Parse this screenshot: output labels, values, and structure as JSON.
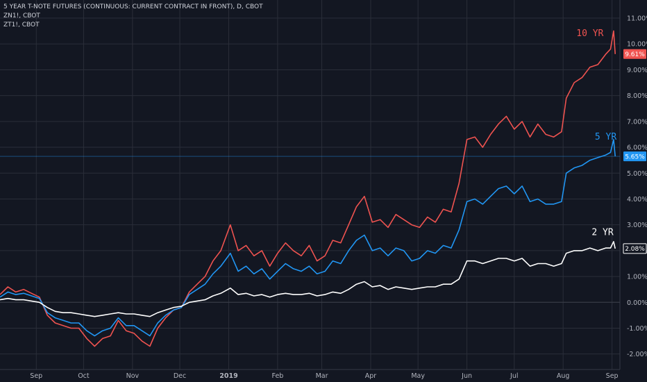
{
  "legend": {
    "title": "5 YEAR T-NOTE FUTURES (CONTINUOUS: CURRENT CONTRACT IN FRONT), D, CBOT",
    "line2": "ZN1!, CBOT",
    "line3": "ZT1!, CBOT"
  },
  "colors": {
    "background": "#131722",
    "grid": "#2a2e39",
    "ten_yr": "#ef5350",
    "five_yr": "#2196f3",
    "two_yr": "#ffffff"
  },
  "chart_data": {
    "type": "line",
    "ylim": [
      -2.6,
      11.7
    ],
    "yticks": [
      "11.00%",
      "10.00%",
      "9.00%",
      "8.00%",
      "7.00%",
      "6.00%",
      "5.00%",
      "4.00%",
      "3.00%",
      "2.00%",
      "1.00%",
      "0.00%",
      "-1.00%",
      "-2.00%"
    ],
    "ytick_values": [
      11,
      10,
      9,
      8,
      7,
      6,
      5,
      4,
      3,
      2,
      1,
      0,
      -1,
      -2
    ],
    "xticks": [
      "Sep",
      "Oct",
      "Nov",
      "Dec",
      "2019",
      "Feb",
      "Mar",
      "Apr",
      "May",
      "Jun",
      "Jul",
      "Aug",
      "Sep"
    ],
    "xtick_dates": [
      "2018-09-01",
      "2018-10-01",
      "2018-11-01",
      "2018-12-01",
      "2019-01-01",
      "2019-02-01",
      "2019-03-01",
      "2019-04-01",
      "2019-05-01",
      "2019-06-01",
      "2019-07-01",
      "2019-08-01",
      "2019-09-01"
    ],
    "xlim": [
      "2018-08-09",
      "2019-09-06"
    ],
    "series": [
      {
        "name": "10 YR",
        "last_value": "9.61%",
        "points": [
          [
            "2018-08-09",
            0.3
          ],
          [
            "2018-08-14",
            0.6
          ],
          [
            "2018-08-19",
            0.4
          ],
          [
            "2018-08-24",
            0.5
          ],
          [
            "2018-08-29",
            0.35
          ],
          [
            "2018-09-03",
            0.2
          ],
          [
            "2018-09-08",
            -0.5
          ],
          [
            "2018-09-13",
            -0.8
          ],
          [
            "2018-09-18",
            -0.9
          ],
          [
            "2018-09-23",
            -1.0
          ],
          [
            "2018-09-28",
            -1.0
          ],
          [
            "2018-10-03",
            -1.4
          ],
          [
            "2018-10-08",
            -1.7
          ],
          [
            "2018-10-13",
            -1.4
          ],
          [
            "2018-10-18",
            -1.3
          ],
          [
            "2018-10-23",
            -0.7
          ],
          [
            "2018-10-28",
            -1.1
          ],
          [
            "2018-11-02",
            -1.2
          ],
          [
            "2018-11-07",
            -1.5
          ],
          [
            "2018-11-12",
            -1.7
          ],
          [
            "2018-11-17",
            -1.0
          ],
          [
            "2018-11-22",
            -0.6
          ],
          [
            "2018-11-27",
            -0.3
          ],
          [
            "2018-12-02",
            -0.2
          ],
          [
            "2018-12-07",
            0.4
          ],
          [
            "2018-12-12",
            0.7
          ],
          [
            "2018-12-17",
            1.0
          ],
          [
            "2018-12-22",
            1.6
          ],
          [
            "2018-12-27",
            2.0
          ],
          [
            "2019-01-02",
            3.0
          ],
          [
            "2019-01-07",
            2.0
          ],
          [
            "2019-01-12",
            2.2
          ],
          [
            "2019-01-17",
            1.8
          ],
          [
            "2019-01-22",
            2.0
          ],
          [
            "2019-01-27",
            1.4
          ],
          [
            "2019-02-01",
            1.9
          ],
          [
            "2019-02-06",
            2.3
          ],
          [
            "2019-02-11",
            2.0
          ],
          [
            "2019-02-16",
            1.8
          ],
          [
            "2019-02-21",
            2.2
          ],
          [
            "2019-02-26",
            1.6
          ],
          [
            "2019-03-03",
            1.8
          ],
          [
            "2019-03-08",
            2.4
          ],
          [
            "2019-03-13",
            2.3
          ],
          [
            "2019-03-18",
            3.0
          ],
          [
            "2019-03-23",
            3.7
          ],
          [
            "2019-03-28",
            4.1
          ],
          [
            "2019-04-02",
            3.1
          ],
          [
            "2019-04-07",
            3.2
          ],
          [
            "2019-04-12",
            2.9
          ],
          [
            "2019-04-17",
            3.4
          ],
          [
            "2019-04-22",
            3.2
          ],
          [
            "2019-04-27",
            3.0
          ],
          [
            "2019-05-02",
            2.9
          ],
          [
            "2019-05-07",
            3.3
          ],
          [
            "2019-05-12",
            3.1
          ],
          [
            "2019-05-17",
            3.6
          ],
          [
            "2019-05-22",
            3.5
          ],
          [
            "2019-05-27",
            4.6
          ],
          [
            "2019-06-01",
            6.3
          ],
          [
            "2019-06-06",
            6.4
          ],
          [
            "2019-06-11",
            6.0
          ],
          [
            "2019-06-16",
            6.5
          ],
          [
            "2019-06-21",
            6.9
          ],
          [
            "2019-06-26",
            7.2
          ],
          [
            "2019-07-01",
            6.7
          ],
          [
            "2019-07-06",
            7.0
          ],
          [
            "2019-07-11",
            6.4
          ],
          [
            "2019-07-16",
            6.9
          ],
          [
            "2019-07-21",
            6.5
          ],
          [
            "2019-07-26",
            6.4
          ],
          [
            "2019-07-31",
            6.6
          ],
          [
            "2019-08-03",
            7.9
          ],
          [
            "2019-08-08",
            8.5
          ],
          [
            "2019-08-13",
            8.7
          ],
          [
            "2019-08-18",
            9.1
          ],
          [
            "2019-08-23",
            9.2
          ],
          [
            "2019-08-28",
            9.6
          ],
          [
            "2019-08-31",
            9.8
          ],
          [
            "2019-09-02",
            10.5
          ],
          [
            "2019-09-03",
            9.61
          ]
        ]
      },
      {
        "name": "5 YR",
        "last_value": "5.65%",
        "points": [
          [
            "2018-08-09",
            0.2
          ],
          [
            "2018-08-14",
            0.4
          ],
          [
            "2018-08-19",
            0.3
          ],
          [
            "2018-08-24",
            0.35
          ],
          [
            "2018-08-29",
            0.25
          ],
          [
            "2018-09-03",
            0.15
          ],
          [
            "2018-09-08",
            -0.4
          ],
          [
            "2018-09-13",
            -0.6
          ],
          [
            "2018-09-18",
            -0.7
          ],
          [
            "2018-09-23",
            -0.8
          ],
          [
            "2018-09-28",
            -0.8
          ],
          [
            "2018-10-03",
            -1.1
          ],
          [
            "2018-10-08",
            -1.3
          ],
          [
            "2018-10-13",
            -1.1
          ],
          [
            "2018-10-18",
            -1.0
          ],
          [
            "2018-10-23",
            -0.6
          ],
          [
            "2018-10-28",
            -0.9
          ],
          [
            "2018-11-02",
            -0.9
          ],
          [
            "2018-11-07",
            -1.1
          ],
          [
            "2018-11-12",
            -1.3
          ],
          [
            "2018-11-17",
            -0.8
          ],
          [
            "2018-11-22",
            -0.5
          ],
          [
            "2018-11-27",
            -0.3
          ],
          [
            "2018-12-02",
            -0.2
          ],
          [
            "2018-12-07",
            0.3
          ],
          [
            "2018-12-12",
            0.5
          ],
          [
            "2018-12-17",
            0.7
          ],
          [
            "2018-12-22",
            1.1
          ],
          [
            "2018-12-27",
            1.4
          ],
          [
            "2019-01-02",
            1.9
          ],
          [
            "2019-01-07",
            1.2
          ],
          [
            "2019-01-12",
            1.4
          ],
          [
            "2019-01-17",
            1.1
          ],
          [
            "2019-01-22",
            1.3
          ],
          [
            "2019-01-27",
            0.9
          ],
          [
            "2019-02-01",
            1.2
          ],
          [
            "2019-02-06",
            1.5
          ],
          [
            "2019-02-11",
            1.3
          ],
          [
            "2019-02-16",
            1.2
          ],
          [
            "2019-02-21",
            1.4
          ],
          [
            "2019-02-26",
            1.1
          ],
          [
            "2019-03-03",
            1.2
          ],
          [
            "2019-03-08",
            1.6
          ],
          [
            "2019-03-13",
            1.5
          ],
          [
            "2019-03-18",
            2.0
          ],
          [
            "2019-03-23",
            2.4
          ],
          [
            "2019-03-28",
            2.6
          ],
          [
            "2019-04-02",
            2.0
          ],
          [
            "2019-04-07",
            2.1
          ],
          [
            "2019-04-12",
            1.8
          ],
          [
            "2019-04-17",
            2.1
          ],
          [
            "2019-04-22",
            2.0
          ],
          [
            "2019-04-27",
            1.6
          ],
          [
            "2019-05-02",
            1.7
          ],
          [
            "2019-05-07",
            2.0
          ],
          [
            "2019-05-12",
            1.9
          ],
          [
            "2019-05-17",
            2.2
          ],
          [
            "2019-05-22",
            2.1
          ],
          [
            "2019-05-27",
            2.8
          ],
          [
            "2019-06-01",
            3.9
          ],
          [
            "2019-06-06",
            4.0
          ],
          [
            "2019-06-11",
            3.8
          ],
          [
            "2019-06-16",
            4.1
          ],
          [
            "2019-06-21",
            4.4
          ],
          [
            "2019-06-26",
            4.5
          ],
          [
            "2019-07-01",
            4.2
          ],
          [
            "2019-07-06",
            4.5
          ],
          [
            "2019-07-11",
            3.9
          ],
          [
            "2019-07-16",
            4.0
          ],
          [
            "2019-07-21",
            3.8
          ],
          [
            "2019-07-26",
            3.8
          ],
          [
            "2019-07-31",
            3.9
          ],
          [
            "2019-08-03",
            5.0
          ],
          [
            "2019-08-08",
            5.2
          ],
          [
            "2019-08-13",
            5.3
          ],
          [
            "2019-08-18",
            5.5
          ],
          [
            "2019-08-23",
            5.6
          ],
          [
            "2019-08-28",
            5.7
          ],
          [
            "2019-08-31",
            5.8
          ],
          [
            "2019-09-02",
            6.3
          ],
          [
            "2019-09-03",
            5.65
          ]
        ]
      },
      {
        "name": "2 YR",
        "last_value": "2.08%",
        "points": [
          [
            "2018-08-09",
            0.1
          ],
          [
            "2018-08-14",
            0.15
          ],
          [
            "2018-08-19",
            0.1
          ],
          [
            "2018-08-24",
            0.1
          ],
          [
            "2018-08-29",
            0.05
          ],
          [
            "2018-09-03",
            0.0
          ],
          [
            "2018-09-08",
            -0.2
          ],
          [
            "2018-09-13",
            -0.35
          ],
          [
            "2018-09-18",
            -0.4
          ],
          [
            "2018-09-23",
            -0.4
          ],
          [
            "2018-09-28",
            -0.45
          ],
          [
            "2018-10-03",
            -0.5
          ],
          [
            "2018-10-08",
            -0.55
          ],
          [
            "2018-10-13",
            -0.5
          ],
          [
            "2018-10-18",
            -0.45
          ],
          [
            "2018-10-23",
            -0.4
          ],
          [
            "2018-10-28",
            -0.45
          ],
          [
            "2018-11-02",
            -0.45
          ],
          [
            "2018-11-07",
            -0.5
          ],
          [
            "2018-11-12",
            -0.55
          ],
          [
            "2018-11-17",
            -0.4
          ],
          [
            "2018-11-22",
            -0.3
          ],
          [
            "2018-11-27",
            -0.2
          ],
          [
            "2018-12-02",
            -0.15
          ],
          [
            "2018-12-07",
            0.0
          ],
          [
            "2018-12-12",
            0.05
          ],
          [
            "2018-12-17",
            0.1
          ],
          [
            "2018-12-22",
            0.25
          ],
          [
            "2018-12-27",
            0.35
          ],
          [
            "2019-01-02",
            0.55
          ],
          [
            "2019-01-07",
            0.3
          ],
          [
            "2019-01-12",
            0.35
          ],
          [
            "2019-01-17",
            0.25
          ],
          [
            "2019-01-22",
            0.3
          ],
          [
            "2019-01-27",
            0.2
          ],
          [
            "2019-02-01",
            0.3
          ],
          [
            "2019-02-06",
            0.35
          ],
          [
            "2019-02-11",
            0.3
          ],
          [
            "2019-02-16",
            0.3
          ],
          [
            "2019-02-21",
            0.35
          ],
          [
            "2019-02-26",
            0.25
          ],
          [
            "2019-03-03",
            0.3
          ],
          [
            "2019-03-08",
            0.4
          ],
          [
            "2019-03-13",
            0.35
          ],
          [
            "2019-03-18",
            0.5
          ],
          [
            "2019-03-23",
            0.7
          ],
          [
            "2019-03-28",
            0.8
          ],
          [
            "2019-04-02",
            0.6
          ],
          [
            "2019-04-07",
            0.65
          ],
          [
            "2019-04-12",
            0.5
          ],
          [
            "2019-04-17",
            0.6
          ],
          [
            "2019-04-22",
            0.55
          ],
          [
            "2019-04-27",
            0.5
          ],
          [
            "2019-05-02",
            0.55
          ],
          [
            "2019-05-07",
            0.6
          ],
          [
            "2019-05-12",
            0.6
          ],
          [
            "2019-05-17",
            0.7
          ],
          [
            "2019-05-22",
            0.7
          ],
          [
            "2019-05-27",
            0.9
          ],
          [
            "2019-06-01",
            1.6
          ],
          [
            "2019-06-06",
            1.6
          ],
          [
            "2019-06-11",
            1.5
          ],
          [
            "2019-06-16",
            1.6
          ],
          [
            "2019-06-21",
            1.7
          ],
          [
            "2019-06-26",
            1.7
          ],
          [
            "2019-07-01",
            1.6
          ],
          [
            "2019-07-06",
            1.7
          ],
          [
            "2019-07-11",
            1.4
          ],
          [
            "2019-07-16",
            1.5
          ],
          [
            "2019-07-21",
            1.5
          ],
          [
            "2019-07-26",
            1.4
          ],
          [
            "2019-07-31",
            1.5
          ],
          [
            "2019-08-03",
            1.9
          ],
          [
            "2019-08-08",
            2.0
          ],
          [
            "2019-08-13",
            2.0
          ],
          [
            "2019-08-18",
            2.1
          ],
          [
            "2019-08-23",
            2.0
          ],
          [
            "2019-08-28",
            2.1
          ],
          [
            "2019-08-31",
            2.1
          ],
          [
            "2019-09-02",
            2.35
          ],
          [
            "2019-09-03",
            2.08
          ]
        ]
      }
    ]
  }
}
